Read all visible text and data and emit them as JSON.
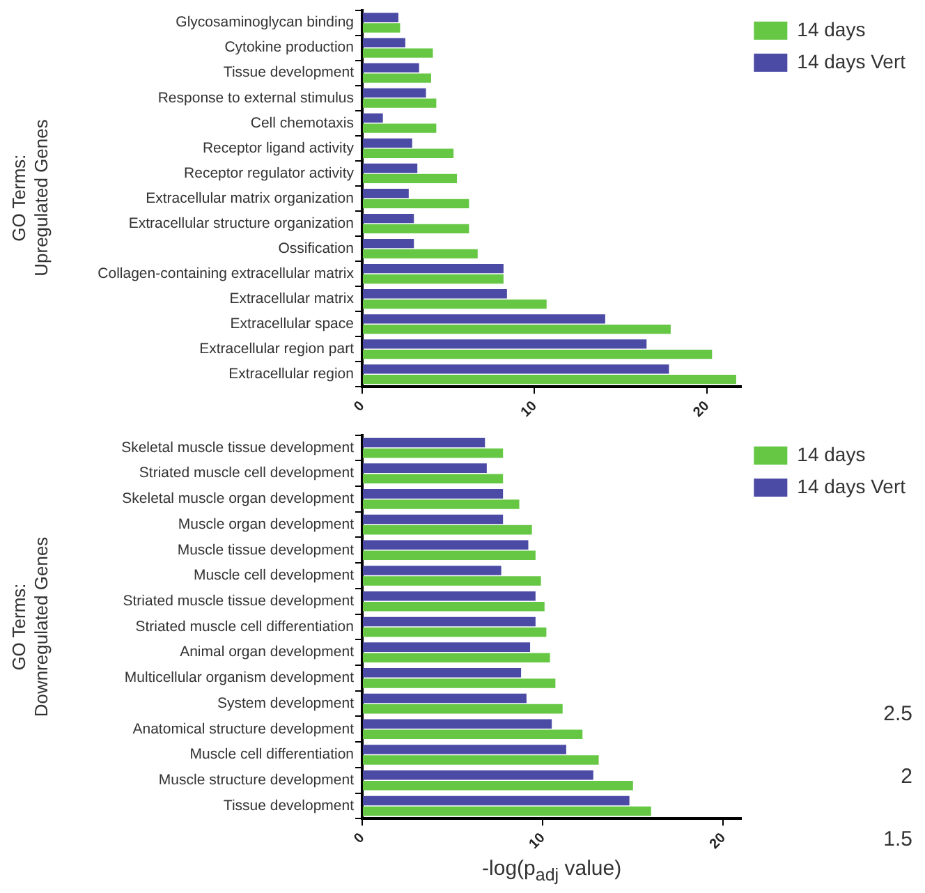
{
  "chart_data": [
    {
      "type": "bar",
      "orientation": "horizontal",
      "ylabel": "GO Terms:\nUpregulated Genes",
      "categories": [
        "Glycosaminoglycan binding",
        "Cytokine production",
        "Tissue development",
        "Response to external stimulus",
        "Cell chemotaxis",
        "Receptor ligand activity",
        "Receptor regulator activity",
        "Extracellular matrix organization",
        "Extracellular structure organization",
        "Ossification",
        "Collagen-containing extracellular matrix",
        "Extracellular matrix",
        "Extracellular space",
        "Extracellular region part",
        "Extracellular region"
      ],
      "series": [
        {
          "name": "14 days",
          "color": "#66c744",
          "values": [
            2.2,
            4.1,
            4.0,
            4.3,
            4.3,
            5.3,
            5.5,
            6.2,
            6.2,
            6.7,
            8.2,
            10.7,
            17.9,
            20.3,
            21.7
          ]
        },
        {
          "name": "14 days Vert",
          "color": "#4b4ba6",
          "values": [
            2.1,
            2.5,
            3.3,
            3.7,
            1.2,
            2.9,
            3.2,
            2.7,
            3.0,
            3.0,
            8.2,
            8.4,
            14.1,
            16.5,
            17.8
          ]
        }
      ],
      "xlim": [
        0,
        22
      ],
      "xticks": [
        0,
        10,
        20
      ],
      "grid": false,
      "legend": "top right"
    },
    {
      "type": "bar",
      "orientation": "horizontal",
      "ylabel": "GO Terms:\nDownregulated Genes",
      "xlabel": "-log(p$_{adj}$ value)",
      "categories": [
        "Skeletal muscle tissue development",
        "Striated muscle cell development",
        "Skeletal muscle organ development",
        "Muscle organ development",
        "Muscle tissue development",
        "Muscle cell development",
        "Striated muscle tissue development",
        "Striated muscle cell differentiation",
        "Animal organ development",
        "Multicellular organism development",
        "System development",
        "Anatomical structure development",
        "Muscle cell differentiation",
        "Muscle structure development",
        "Tissue development"
      ],
      "series": [
        {
          "name": "14 days",
          "color": "#66c744",
          "values": [
            7.8,
            7.8,
            8.7,
            9.4,
            9.6,
            9.9,
            10.1,
            10.2,
            10.4,
            10.7,
            11.1,
            12.2,
            13.1,
            15.0,
            16.0
          ]
        },
        {
          "name": "14 days Vert",
          "color": "#4b4ba6",
          "values": [
            6.8,
            6.9,
            7.8,
            7.8,
            9.2,
            7.7,
            9.6,
            9.6,
            9.3,
            8.8,
            9.1,
            10.5,
            11.3,
            12.8,
            14.8
          ]
        }
      ],
      "xlim": [
        0,
        21
      ],
      "xticks": [
        0,
        10,
        20
      ],
      "grid": false,
      "legend": "top right",
      "annotations": [
        "2.5",
        "2",
        "1.5"
      ]
    }
  ]
}
